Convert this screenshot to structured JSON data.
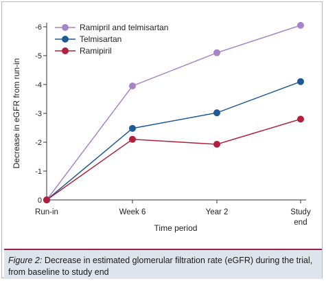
{
  "chart_data": {
    "type": "line",
    "categories": [
      "Run-in",
      "Week 6",
      "Year 2",
      "Study end"
    ],
    "x_tick_lines": [
      [
        "Run-in"
      ],
      [
        "Week 6"
      ],
      [
        "Year 2"
      ],
      [
        "Study",
        "end"
      ]
    ],
    "xlabel": "Time period",
    "ylabel": "Decrease in eGFR from run-in",
    "ylim": [
      0,
      -6
    ],
    "y_ticks": [
      0,
      -1,
      -2,
      -3,
      -4,
      -5,
      -6
    ],
    "y_tick_labels": [
      "0",
      "-1",
      "-2",
      "-3",
      "-4",
      "-5",
      "-6"
    ],
    "legend_position": "top-left",
    "grid": false,
    "series": [
      {
        "name": "Ramipril and telmisartan",
        "color": "#a585c8",
        "values": [
          0,
          -3.95,
          -5.1,
          -6.05
        ]
      },
      {
        "name": "Telmisartan",
        "color": "#1f5a96",
        "values": [
          0,
          -2.48,
          -3.02,
          -4.1
        ]
      },
      {
        "name": "Ramipiril",
        "color": "#b2203e",
        "values": [
          0,
          -2.1,
          -1.93,
          -2.8
        ]
      }
    ]
  },
  "caption": {
    "label": "Figure 2:",
    "text": " Decrease in estimated glomerular filtration rate (eGFR) during the trial, from baseline to study end"
  },
  "colors": {
    "axis": "#333333",
    "caption_background": "#dde4eb",
    "caption_rule": "#a31f45"
  }
}
